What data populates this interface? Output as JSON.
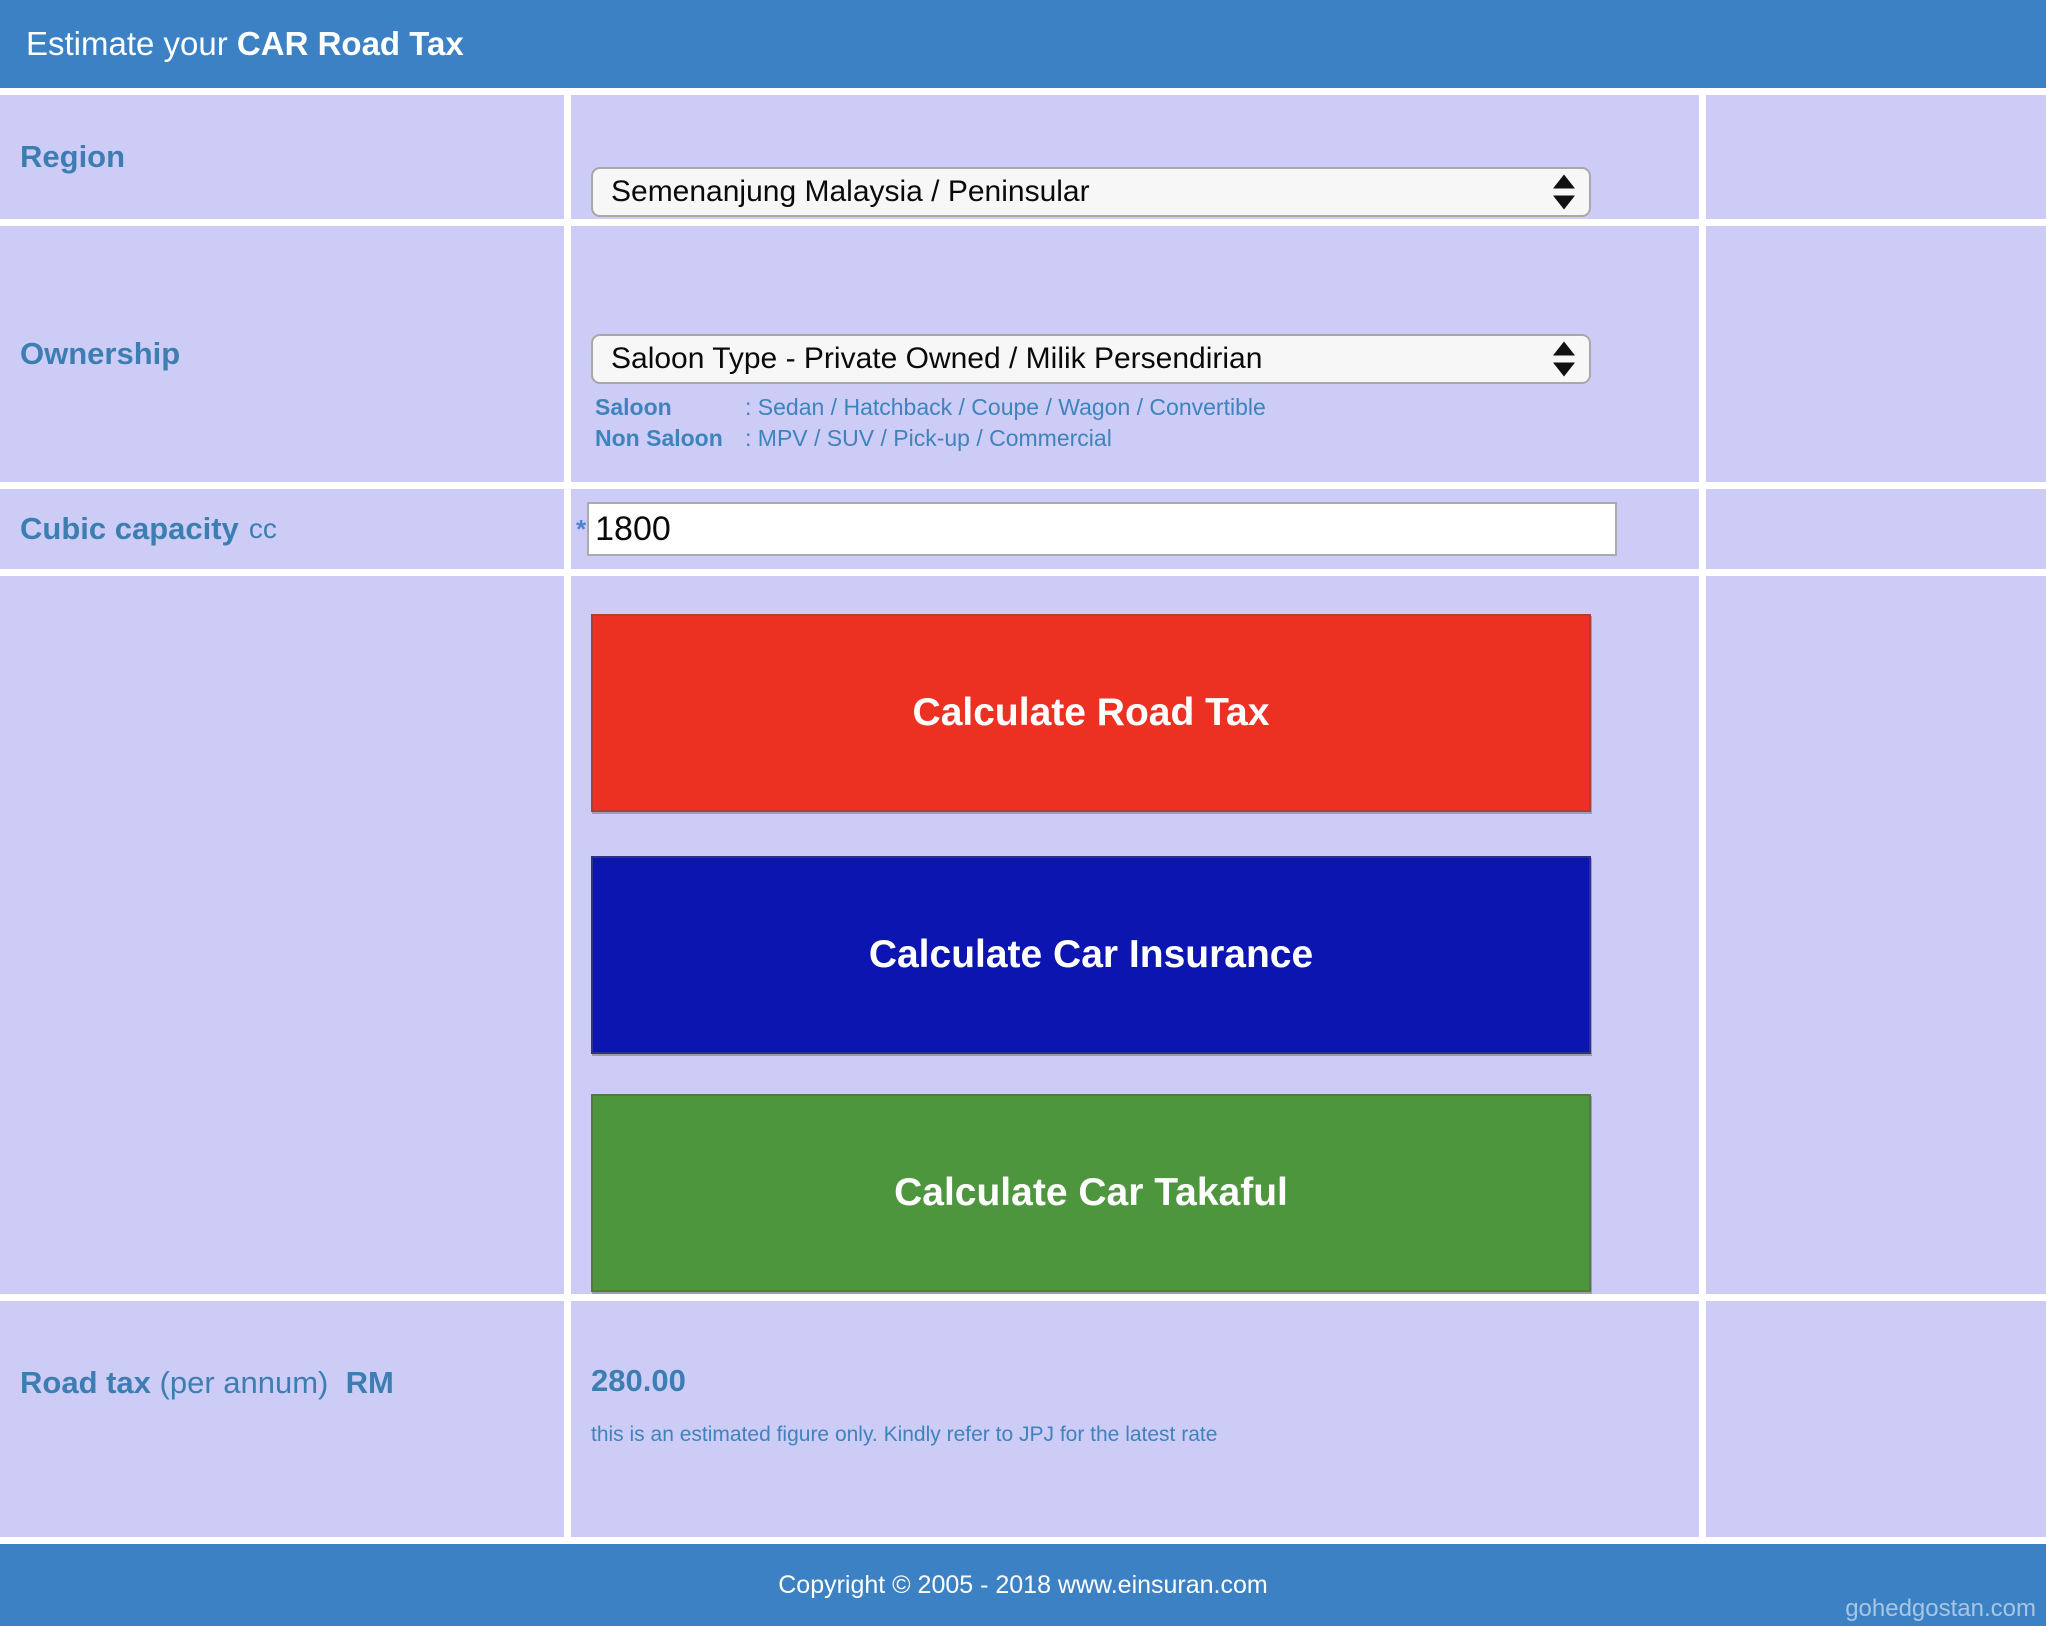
{
  "header": {
    "title_prefix": "Estimate your ",
    "title_bold": "CAR Road Tax"
  },
  "region": {
    "label": "Region",
    "selected_option": "Semenanjung Malaysia / Peninsular"
  },
  "ownership": {
    "label": "Ownership",
    "selected_option": "Saloon Type - Private Owned / Milik Persendirian",
    "hints": [
      {
        "term": "Saloon",
        "desc": ": Sedan / Hatchback / Coupe / Wagon / Convertible"
      },
      {
        "term": "Non Saloon",
        "desc": ": MPV / SUV / Pick-up / Commercial"
      }
    ]
  },
  "cubic": {
    "label": "Cubic capacity",
    "unit": "cc",
    "required_mark": "*",
    "value": "1800"
  },
  "buttons": [
    {
      "id": "calculate-road-tax",
      "label": "Calculate Road Tax",
      "color": "#ec3123"
    },
    {
      "id": "calculate-car-insurance",
      "label": "Calculate Car Insurance",
      "color": "#0d15b0"
    },
    {
      "id": "calculate-car-takaful",
      "label": "Calculate Car Takaful",
      "color": "#4d963e"
    }
  ],
  "result": {
    "label_bold": "Road tax",
    "label_normal": " (per annum)",
    "label_unit": "RM",
    "value": "280.00",
    "note": "this is an estimated figure only. Kindly refer to JPJ for the latest rate"
  },
  "footer": {
    "copyright": "Copyright © 2005 - 2018 www.einsuran.com",
    "watermark": "gohedgostan.com"
  },
  "colors": {
    "header_footer_blue": "#3b81c3",
    "cell_lavender": "#cdccf7",
    "label_blue": "#3d7eb2",
    "hint_blue": "#3f83bd",
    "required_mark_blue": "#4a82d4",
    "button_red": "#ec3123",
    "button_blue": "#0d15b0",
    "button_green": "#4d963e"
  }
}
